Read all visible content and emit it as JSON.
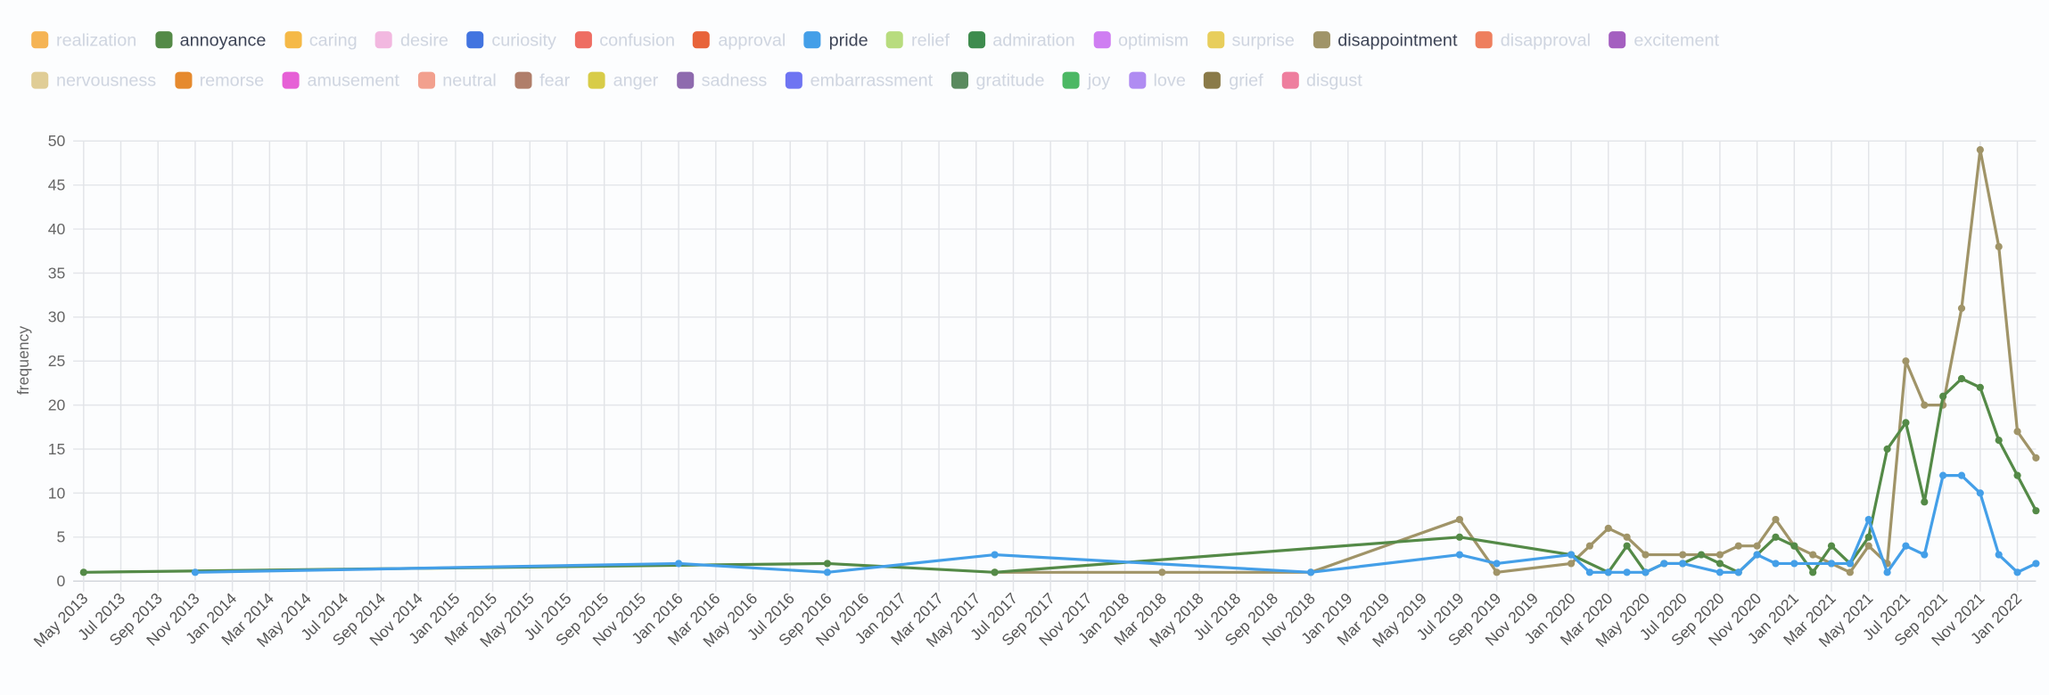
{
  "legend": {
    "rows": [
      [
        {
          "label": "realization",
          "color": "#f5b454",
          "active": false
        },
        {
          "label": "annoyance",
          "color": "#548a47",
          "active": true
        },
        {
          "label": "caring",
          "color": "#f5b947",
          "active": false
        },
        {
          "label": "desire",
          "color": "#f2b8e0",
          "active": false
        },
        {
          "label": "curiosity",
          "color": "#4274e0",
          "active": false
        },
        {
          "label": "confusion",
          "color": "#ee6d62",
          "active": false
        },
        {
          "label": "approval",
          "color": "#e8643a",
          "active": false
        },
        {
          "label": "pride",
          "color": "#449fe8",
          "active": true
        },
        {
          "label": "relief",
          "color": "#b8dc7e",
          "active": false
        },
        {
          "label": "admiration",
          "color": "#3e8c4e",
          "active": false
        },
        {
          "label": "optimism",
          "color": "#cf7ef2",
          "active": false
        },
        {
          "label": "surprise",
          "color": "#e8ce5c",
          "active": false
        },
        {
          "label": "disappointment",
          "color": "#a09468",
          "active": true
        },
        {
          "label": "disapproval",
          "color": "#ee7f5e",
          "active": false
        },
        {
          "label": "excitement",
          "color": "#a45fc0",
          "active": false
        }
      ],
      [
        {
          "label": "nervousness",
          "color": "#e0cd96",
          "active": false
        },
        {
          "label": "remorse",
          "color": "#e68a2e",
          "active": false
        },
        {
          "label": "amusement",
          "color": "#e660d6",
          "active": false
        },
        {
          "label": "neutral",
          "color": "#f2a08e",
          "active": false
        },
        {
          "label": "fear",
          "color": "#b07e6a",
          "active": false
        },
        {
          "label": "anger",
          "color": "#d8cc48",
          "active": false
        },
        {
          "label": "sadness",
          "color": "#8e6aae",
          "active": false
        },
        {
          "label": "embarrassment",
          "color": "#6e74f2",
          "active": false
        },
        {
          "label": "gratitude",
          "color": "#5a8a5e",
          "active": false
        },
        {
          "label": "joy",
          "color": "#4cb864",
          "active": false
        },
        {
          "label": "love",
          "color": "#b08cf2",
          "active": false
        },
        {
          "label": "grief",
          "color": "#8a7a48",
          "active": false
        },
        {
          "label": "disgust",
          "color": "#ee7e9e",
          "active": false
        }
      ]
    ]
  },
  "chart_data": {
    "type": "line",
    "title": "",
    "xlabel": "",
    "ylabel": "frequency",
    "ylim": [
      0,
      50
    ],
    "y_ticks": [
      0,
      5,
      10,
      15,
      20,
      25,
      30,
      35,
      40,
      45,
      50
    ],
    "grid": true,
    "legend_placement": "top",
    "x": [
      "2013-05",
      "2013-11",
      "2016-01",
      "2016-09",
      "2017-06",
      "2018-03",
      "2018-11",
      "2019-07",
      "2019-09",
      "2020-01",
      "2020-02",
      "2020-03",
      "2020-04",
      "2020-05",
      "2020-06",
      "2020-07",
      "2020-08",
      "2020-09",
      "2020-10",
      "2020-11",
      "2020-12",
      "2021-01",
      "2021-02",
      "2021-03",
      "2021-04",
      "2021-05",
      "2021-06",
      "2021-07",
      "2021-08",
      "2021-09",
      "2021-10",
      "2021-11",
      "2021-12",
      "2022-01",
      "2022-02"
    ],
    "x_ticks": [
      "May 2013",
      "Jul 2013",
      "Sep 2013",
      "Nov 2013",
      "Jan 2014",
      "Mar 2014",
      "May 2014",
      "Jul 2014",
      "Sep 2014",
      "Nov 2014",
      "Jan 2015",
      "Mar 2015",
      "May 2015",
      "Jul 2015",
      "Sep 2015",
      "Nov 2015",
      "Jan 2016",
      "Mar 2016",
      "May 2016",
      "Jul 2016",
      "Sep 2016",
      "Nov 2016",
      "Jan 2017",
      "Mar 2017",
      "May 2017",
      "Jul 2017",
      "Sep 2017",
      "Nov 2017",
      "Jan 2018",
      "Mar 2018",
      "May 2018",
      "Jul 2018",
      "Sep 2018",
      "Nov 2018",
      "Jan 2019",
      "Mar 2019",
      "May 2019",
      "Jul 2019",
      "Sep 2019",
      "Nov 2019",
      "Jan 2020",
      "Mar 2020",
      "May 2020",
      "Jul 2020",
      "Sep 2020",
      "Nov 2020",
      "Jan 2021",
      "Mar 2021",
      "May 2021",
      "Jul 2021",
      "Sep 2021",
      "Nov 2021",
      "Jan 2022"
    ],
    "series": [
      {
        "name": "disappointment",
        "color": "#a09468",
        "values": [
          null,
          null,
          null,
          null,
          1,
          1,
          1,
          7,
          1,
          2,
          4,
          6,
          5,
          3,
          null,
          3,
          null,
          3,
          4,
          4,
          7,
          4,
          3,
          2,
          1,
          4,
          2,
          25,
          20,
          20,
          31,
          49,
          38,
          17,
          14
        ]
      },
      {
        "name": "annoyance",
        "color": "#548a47",
        "values": [
          1,
          null,
          null,
          2,
          1,
          null,
          null,
          5,
          null,
          3,
          null,
          1,
          4,
          1,
          2,
          2,
          3,
          2,
          1,
          3,
          5,
          4,
          1,
          4,
          2,
          5,
          15,
          18,
          9,
          21,
          23,
          22,
          16,
          12,
          8
        ]
      },
      {
        "name": "pride",
        "color": "#449fe8",
        "values": [
          null,
          1,
          2,
          1,
          3,
          null,
          1,
          3,
          2,
          3,
          1,
          1,
          1,
          1,
          2,
          2,
          null,
          1,
          1,
          3,
          2,
          2,
          null,
          2,
          2,
          7,
          1,
          4,
          3,
          12,
          12,
          10,
          3,
          1,
          2
        ]
      }
    ]
  }
}
